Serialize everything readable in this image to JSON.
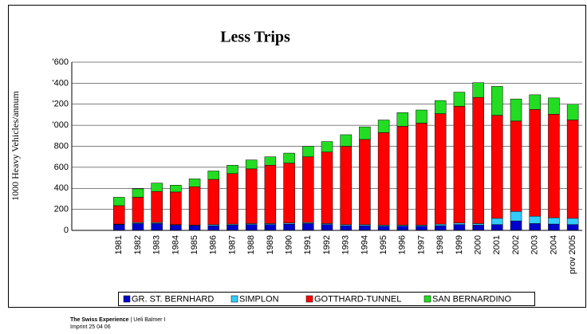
{
  "chart_data": {
    "type": "stacked_bar",
    "title": "Less Trips",
    "y_label": "1000 Heavy Vehicles/annum",
    "categories": [
      null,
      null,
      "1981",
      "1982",
      "1983",
      "1984",
      "1985",
      "1986",
      "1987",
      "1988",
      "1989",
      "1990",
      "1991",
      "1992",
      "1993",
      "1994",
      "1995",
      "1996",
      "1997",
      "1998",
      "1999",
      "2000",
      "2001",
      "2002",
      "2003",
      "2004",
      "prov 2005"
    ],
    "series": [
      {
        "name": "GR. ST. BERNHARD",
        "color": "#0000cc",
        "values": [
          null,
          null,
          55,
          65,
          65,
          50,
          45,
          45,
          50,
          55,
          55,
          60,
          65,
          55,
          45,
          45,
          40,
          40,
          40,
          45,
          55,
          50,
          55,
          90,
          65,
          60,
          55
        ]
      },
      {
        "name": "SIMPLON",
        "color": "#33ccff",
        "values": [
          null,
          null,
          5,
          10,
          10,
          5,
          5,
          10,
          10,
          10,
          10,
          10,
          10,
          10,
          10,
          10,
          10,
          10,
          10,
          15,
          15,
          15,
          60,
          90,
          70,
          60,
          60
        ]
      },
      {
        "name": "GOTTHARD-TUNNEL",
        "color": "#ff0000",
        "values": [
          null,
          null,
          175,
          240,
          295,
          310,
          365,
          430,
          480,
          520,
          555,
          570,
          625,
          680,
          745,
          810,
          880,
          940,
          970,
          1050,
          1110,
          1200,
          980,
          860,
          1015,
          985,
          935
        ]
      },
      {
        "name": "SAN BERNARDINO",
        "color": "#22dd22",
        "values": [
          null,
          null,
          80,
          80,
          80,
          65,
          75,
          80,
          80,
          85,
          80,
          95,
          100,
          100,
          110,
          120,
          120,
          130,
          125,
          125,
          135,
          140,
          275,
          210,
          140,
          155,
          150
        ]
      }
    ],
    "ylim": [
      0,
      1600
    ],
    "yticks": [
      0,
      200,
      400,
      600,
      800,
      {
        "value": 1000,
        "label": "'000"
      },
      {
        "value": 1200,
        "label": "'200"
      },
      {
        "value": 1400,
        "label": "'400"
      },
      {
        "value": 1600,
        "label": "'600"
      }
    ],
    "grid": true,
    "legend": "bottom"
  },
  "footer": {
    "brand": "The Swiss Experience",
    "author": "| Ueli Balmer I",
    "imprint": "Imprint 25 04 06"
  }
}
